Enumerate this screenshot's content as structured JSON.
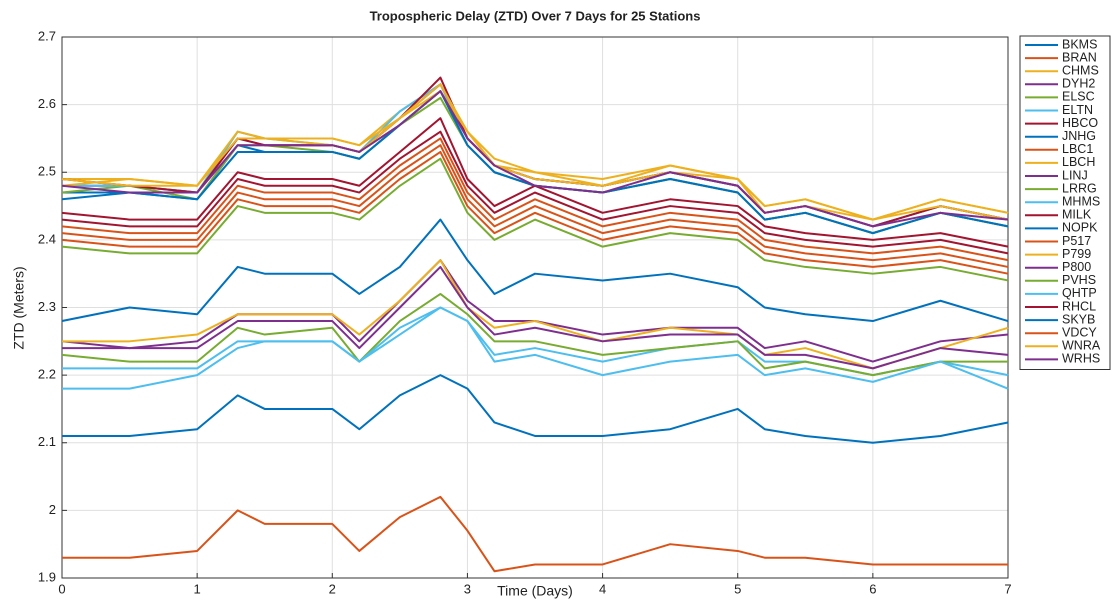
{
  "chart_data": {
    "type": "line",
    "title": "Tropospheric Delay (ZTD) Over 7 Days for 25 Stations",
    "x_label": "Time (Days)",
    "y_label": "ZTD (Meters)",
    "xlim": [
      0,
      7
    ],
    "xticks": [
      0,
      1,
      2,
      3,
      4,
      5,
      6,
      7
    ],
    "ylim": [
      1.9,
      2.7
    ],
    "yticks": [
      1.9,
      2,
      2.1,
      2.2,
      2.3,
      2.4,
      2.5,
      2.6,
      2.7
    ],
    "grid": true,
    "legend": "outside-right",
    "x": [
      0,
      0.5,
      1,
      1.3,
      1.5,
      2,
      2.2,
      2.5,
      2.8,
      3,
      3.2,
      3.5,
      4,
      4.5,
      5,
      5.2,
      5.5,
      6,
      6.5,
      7
    ],
    "series": [
      {
        "name": "BKMS",
        "color": "#0072BD",
        "values": [
          2.47,
          2.47,
          2.46,
          2.54,
          2.53,
          2.53,
          2.52,
          2.57,
          2.62,
          2.54,
          2.5,
          2.48,
          2.47,
          2.49,
          2.47,
          2.43,
          2.44,
          2.41,
          2.44,
          2.42
        ]
      },
      {
        "name": "BRAN",
        "color": "#D95319",
        "values": [
          2.42,
          2.41,
          2.41,
          2.48,
          2.47,
          2.47,
          2.46,
          2.51,
          2.55,
          2.47,
          2.43,
          2.46,
          2.42,
          2.44,
          2.43,
          2.4,
          2.39,
          2.38,
          2.39,
          2.37
        ]
      },
      {
        "name": "CHMS",
        "color": "#EDB120",
        "values": [
          2.49,
          2.49,
          2.48,
          2.56,
          2.55,
          2.55,
          2.54,
          2.59,
          2.63,
          2.56,
          2.52,
          2.5,
          2.49,
          2.51,
          2.49,
          2.45,
          2.46,
          2.43,
          2.46,
          2.44
        ]
      },
      {
        "name": "DYH2",
        "color": "#7E2F8E",
        "values": [
          2.48,
          2.48,
          2.47,
          2.55,
          2.54,
          2.54,
          2.53,
          2.58,
          2.63,
          2.55,
          2.51,
          2.49,
          2.48,
          2.5,
          2.48,
          2.44,
          2.45,
          2.42,
          2.45,
          2.43
        ]
      },
      {
        "name": "ELSC",
        "color": "#77AC30",
        "values": [
          2.47,
          2.48,
          2.46,
          2.54,
          2.54,
          2.53,
          2.52,
          2.57,
          2.61,
          2.54,
          2.5,
          2.48,
          2.47,
          2.49,
          2.47,
          2.43,
          2.44,
          2.41,
          2.44,
          2.42
        ]
      },
      {
        "name": "ELTN",
        "color": "#4DBEEE",
        "values": [
          2.48,
          2.48,
          2.47,
          2.56,
          2.55,
          2.54,
          2.53,
          2.59,
          2.63,
          2.55,
          2.51,
          2.49,
          2.48,
          2.5,
          2.48,
          2.44,
          2.45,
          2.42,
          2.45,
          2.43
        ]
      },
      {
        "name": "HBCO",
        "color": "#A2142F",
        "values": [
          2.49,
          2.48,
          2.47,
          2.55,
          2.54,
          2.54,
          2.53,
          2.58,
          2.64,
          2.55,
          2.51,
          2.49,
          2.48,
          2.5,
          2.48,
          2.44,
          2.45,
          2.42,
          2.45,
          2.43
        ]
      },
      {
        "name": "JNHG",
        "color": "#0072BD",
        "values": [
          2.46,
          2.47,
          2.46,
          2.53,
          2.53,
          2.53,
          2.52,
          2.57,
          2.62,
          2.54,
          2.5,
          2.48,
          2.47,
          2.49,
          2.47,
          2.43,
          2.44,
          2.41,
          2.44,
          2.42
        ]
      },
      {
        "name": "LBC1",
        "color": "#D95319",
        "values": [
          2.41,
          2.4,
          2.4,
          2.47,
          2.46,
          2.46,
          2.45,
          2.5,
          2.54,
          2.46,
          2.42,
          2.45,
          2.41,
          2.43,
          2.42,
          2.39,
          2.38,
          2.37,
          2.38,
          2.36
        ]
      },
      {
        "name": "LBCH",
        "color": "#EDB120",
        "values": [
          2.48,
          2.49,
          2.48,
          2.56,
          2.55,
          2.55,
          2.54,
          2.58,
          2.63,
          2.56,
          2.51,
          2.5,
          2.48,
          2.51,
          2.49,
          2.45,
          2.46,
          2.43,
          2.46,
          2.44
        ]
      },
      {
        "name": "LINJ",
        "color": "#7E2F8E",
        "values": [
          2.25,
          2.24,
          2.25,
          2.29,
          2.29,
          2.29,
          2.25,
          2.31,
          2.37,
          2.31,
          2.28,
          2.28,
          2.26,
          2.27,
          2.27,
          2.24,
          2.25,
          2.22,
          2.25,
          2.26
        ]
      },
      {
        "name": "LRRG",
        "color": "#77AC30",
        "values": [
          2.39,
          2.38,
          2.38,
          2.45,
          2.44,
          2.44,
          2.43,
          2.48,
          2.52,
          2.44,
          2.4,
          2.43,
          2.39,
          2.41,
          2.4,
          2.37,
          2.36,
          2.35,
          2.36,
          2.34
        ]
      },
      {
        "name": "MHMS",
        "color": "#4DBEEE",
        "values": [
          2.21,
          2.21,
          2.21,
          2.25,
          2.25,
          2.25,
          2.22,
          2.26,
          2.3,
          2.28,
          2.23,
          2.24,
          2.22,
          2.24,
          2.25,
          2.22,
          2.22,
          2.2,
          2.22,
          2.2
        ]
      },
      {
        "name": "MILK",
        "color": "#A2142F",
        "values": [
          2.44,
          2.43,
          2.43,
          2.5,
          2.49,
          2.49,
          2.48,
          2.53,
          2.58,
          2.49,
          2.45,
          2.48,
          2.44,
          2.46,
          2.45,
          2.42,
          2.41,
          2.4,
          2.41,
          2.39
        ]
      },
      {
        "name": "NOPK",
        "color": "#0072BD",
        "values": [
          2.28,
          2.3,
          2.29,
          2.36,
          2.35,
          2.35,
          2.32,
          2.36,
          2.43,
          2.37,
          2.32,
          2.35,
          2.34,
          2.35,
          2.33,
          2.3,
          2.29,
          2.28,
          2.31,
          2.28
        ]
      },
      {
        "name": "P517",
        "color": "#D95319",
        "values": [
          2.4,
          2.39,
          2.39,
          2.46,
          2.45,
          2.45,
          2.44,
          2.49,
          2.53,
          2.45,
          2.41,
          2.44,
          2.4,
          2.42,
          2.41,
          2.38,
          2.37,
          2.36,
          2.37,
          2.35
        ]
      },
      {
        "name": "P799",
        "color": "#EDB120",
        "values": [
          2.25,
          2.25,
          2.26,
          2.29,
          2.29,
          2.29,
          2.26,
          2.31,
          2.37,
          2.3,
          2.27,
          2.28,
          2.25,
          2.27,
          2.26,
          2.23,
          2.24,
          2.21,
          2.24,
          2.27
        ]
      },
      {
        "name": "P800",
        "color": "#7E2F8E",
        "values": [
          2.24,
          2.24,
          2.24,
          2.28,
          2.28,
          2.28,
          2.24,
          2.3,
          2.36,
          2.3,
          2.26,
          2.27,
          2.25,
          2.26,
          2.26,
          2.23,
          2.23,
          2.21,
          2.24,
          2.23
        ]
      },
      {
        "name": "PVHS",
        "color": "#77AC30",
        "values": [
          2.23,
          2.22,
          2.22,
          2.27,
          2.26,
          2.27,
          2.22,
          2.28,
          2.32,
          2.29,
          2.25,
          2.25,
          2.23,
          2.24,
          2.25,
          2.21,
          2.22,
          2.2,
          2.22,
          2.22
        ]
      },
      {
        "name": "QHTP",
        "color": "#4DBEEE",
        "values": [
          2.18,
          2.18,
          2.2,
          2.24,
          2.25,
          2.25,
          2.22,
          2.27,
          2.3,
          2.28,
          2.22,
          2.23,
          2.2,
          2.22,
          2.23,
          2.2,
          2.21,
          2.19,
          2.22,
          2.18
        ]
      },
      {
        "name": "RHCL",
        "color": "#A2142F",
        "values": [
          2.43,
          2.42,
          2.42,
          2.49,
          2.48,
          2.48,
          2.47,
          2.52,
          2.56,
          2.48,
          2.44,
          2.47,
          2.43,
          2.45,
          2.44,
          2.41,
          2.4,
          2.39,
          2.4,
          2.38
        ]
      },
      {
        "name": "SKYB",
        "color": "#0072BD",
        "values": [
          2.11,
          2.11,
          2.12,
          2.17,
          2.15,
          2.15,
          2.12,
          2.17,
          2.2,
          2.18,
          2.13,
          2.11,
          2.11,
          2.12,
          2.15,
          2.12,
          2.11,
          2.1,
          2.11,
          2.13
        ]
      },
      {
        "name": "VDCY",
        "color": "#D95319",
        "values": [
          1.93,
          1.93,
          1.94,
          2.0,
          1.98,
          1.98,
          1.94,
          1.99,
          2.02,
          1.97,
          1.91,
          1.92,
          1.92,
          1.95,
          1.94,
          1.93,
          1.93,
          1.92,
          1.92,
          1.92
        ]
      },
      {
        "name": "WNRA",
        "color": "#EDB120",
        "values": [
          2.49,
          2.48,
          2.48,
          2.55,
          2.55,
          2.54,
          2.53,
          2.58,
          2.62,
          2.56,
          2.51,
          2.49,
          2.48,
          2.5,
          2.49,
          2.44,
          2.45,
          2.43,
          2.45,
          2.43
        ]
      },
      {
        "name": "WRHS",
        "color": "#7E2F8E",
        "values": [
          2.48,
          2.47,
          2.47,
          2.54,
          2.54,
          2.54,
          2.53,
          2.57,
          2.62,
          2.55,
          2.51,
          2.48,
          2.47,
          2.5,
          2.48,
          2.44,
          2.45,
          2.42,
          2.44,
          2.43
        ]
      }
    ]
  }
}
